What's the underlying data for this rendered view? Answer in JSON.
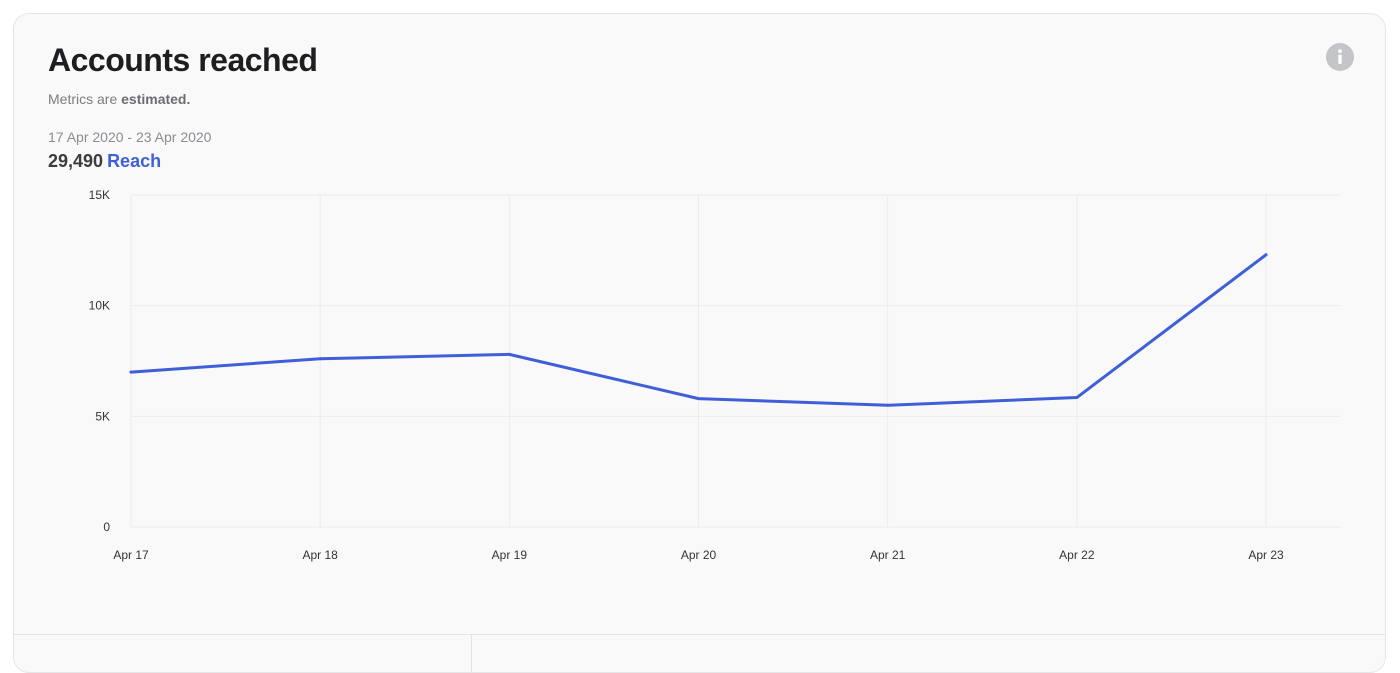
{
  "card": {
    "title": "Accounts reached",
    "subtitle_prefix": "Metrics are ",
    "subtitle_emphasis": "estimated.",
    "info_icon": "info-circle-icon",
    "date_range": "17 Apr 2020 - 23 Apr 2020",
    "total_value": "29,490",
    "total_label": "Reach"
  },
  "colors": {
    "line": "#3f5fd9",
    "accent_text": "#3f5fd9",
    "grid": "#ececee",
    "background": "#f9f9fa"
  },
  "chart_data": {
    "type": "line",
    "categories": [
      "Apr 17",
      "Apr 18",
      "Apr 19",
      "Apr 20",
      "Apr 21",
      "Apr 22",
      "Apr 23"
    ],
    "series": [
      {
        "values": [
          7000,
          7600,
          7800,
          5800,
          5500,
          5850,
          12300
        ]
      }
    ],
    "yticks": [
      0,
      5000,
      10000,
      15000
    ],
    "ytick_labels": [
      "0",
      "5K",
      "10K",
      "15K"
    ],
    "ylim": [
      0,
      15000
    ],
    "grid": true,
    "legend": "none"
  }
}
